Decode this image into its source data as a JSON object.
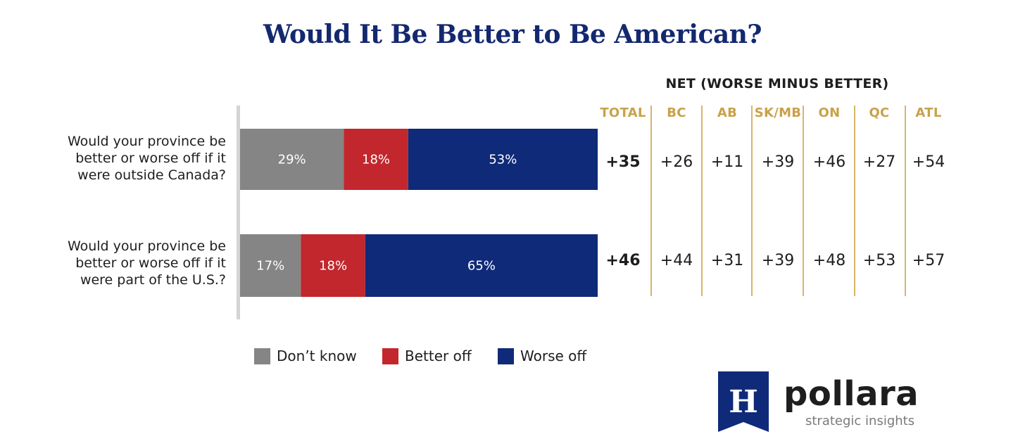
{
  "chart_data": {
    "type": "bar",
    "title": "Would It Be Better to Be American?",
    "stacked": true,
    "orientation": "horizontal",
    "categories": [
      "Would your province be better or worse off if it were outside Canada?",
      "Would your province be better or worse off if it were part of the U.S.?"
    ],
    "series": [
      {
        "name": "Don’t know",
        "values": [
          29,
          17
        ],
        "labels": [
          "29%",
          "17%"
        ],
        "color": "#858585"
      },
      {
        "name": "Better off",
        "values": [
          18,
          18
        ],
        "labels": [
          "18%",
          "18%"
        ],
        "color": "#c1272d"
      },
      {
        "name": "Worse off",
        "values": [
          53,
          65
        ],
        "labels": [
          "53%",
          "65%"
        ],
        "color": "#0f2a78"
      }
    ],
    "xlim": [
      0,
      100
    ],
    "legend_position": "bottom",
    "net_table": {
      "header": "NET (WORSE MINUS BETTER)",
      "columns": [
        "TOTAL",
        "BC",
        "AB",
        "SK/MB",
        "ON",
        "QC",
        "ATL"
      ],
      "rows": [
        [
          "+35",
          "+26",
          "+11",
          "+39",
          "+46",
          "+27",
          "+54"
        ],
        [
          "+46",
          "+44",
          "+31",
          "+39",
          "+48",
          "+53",
          "+57"
        ]
      ]
    }
  },
  "colors": {
    "title": "#14286f",
    "header_gold": "#c9a14a",
    "separator_gold": "#d7b56a",
    "logo_navy": "#102a7a"
  },
  "brand": {
    "name": "pollara",
    "tagline": "strategic insights",
    "logo_letter": "H"
  }
}
